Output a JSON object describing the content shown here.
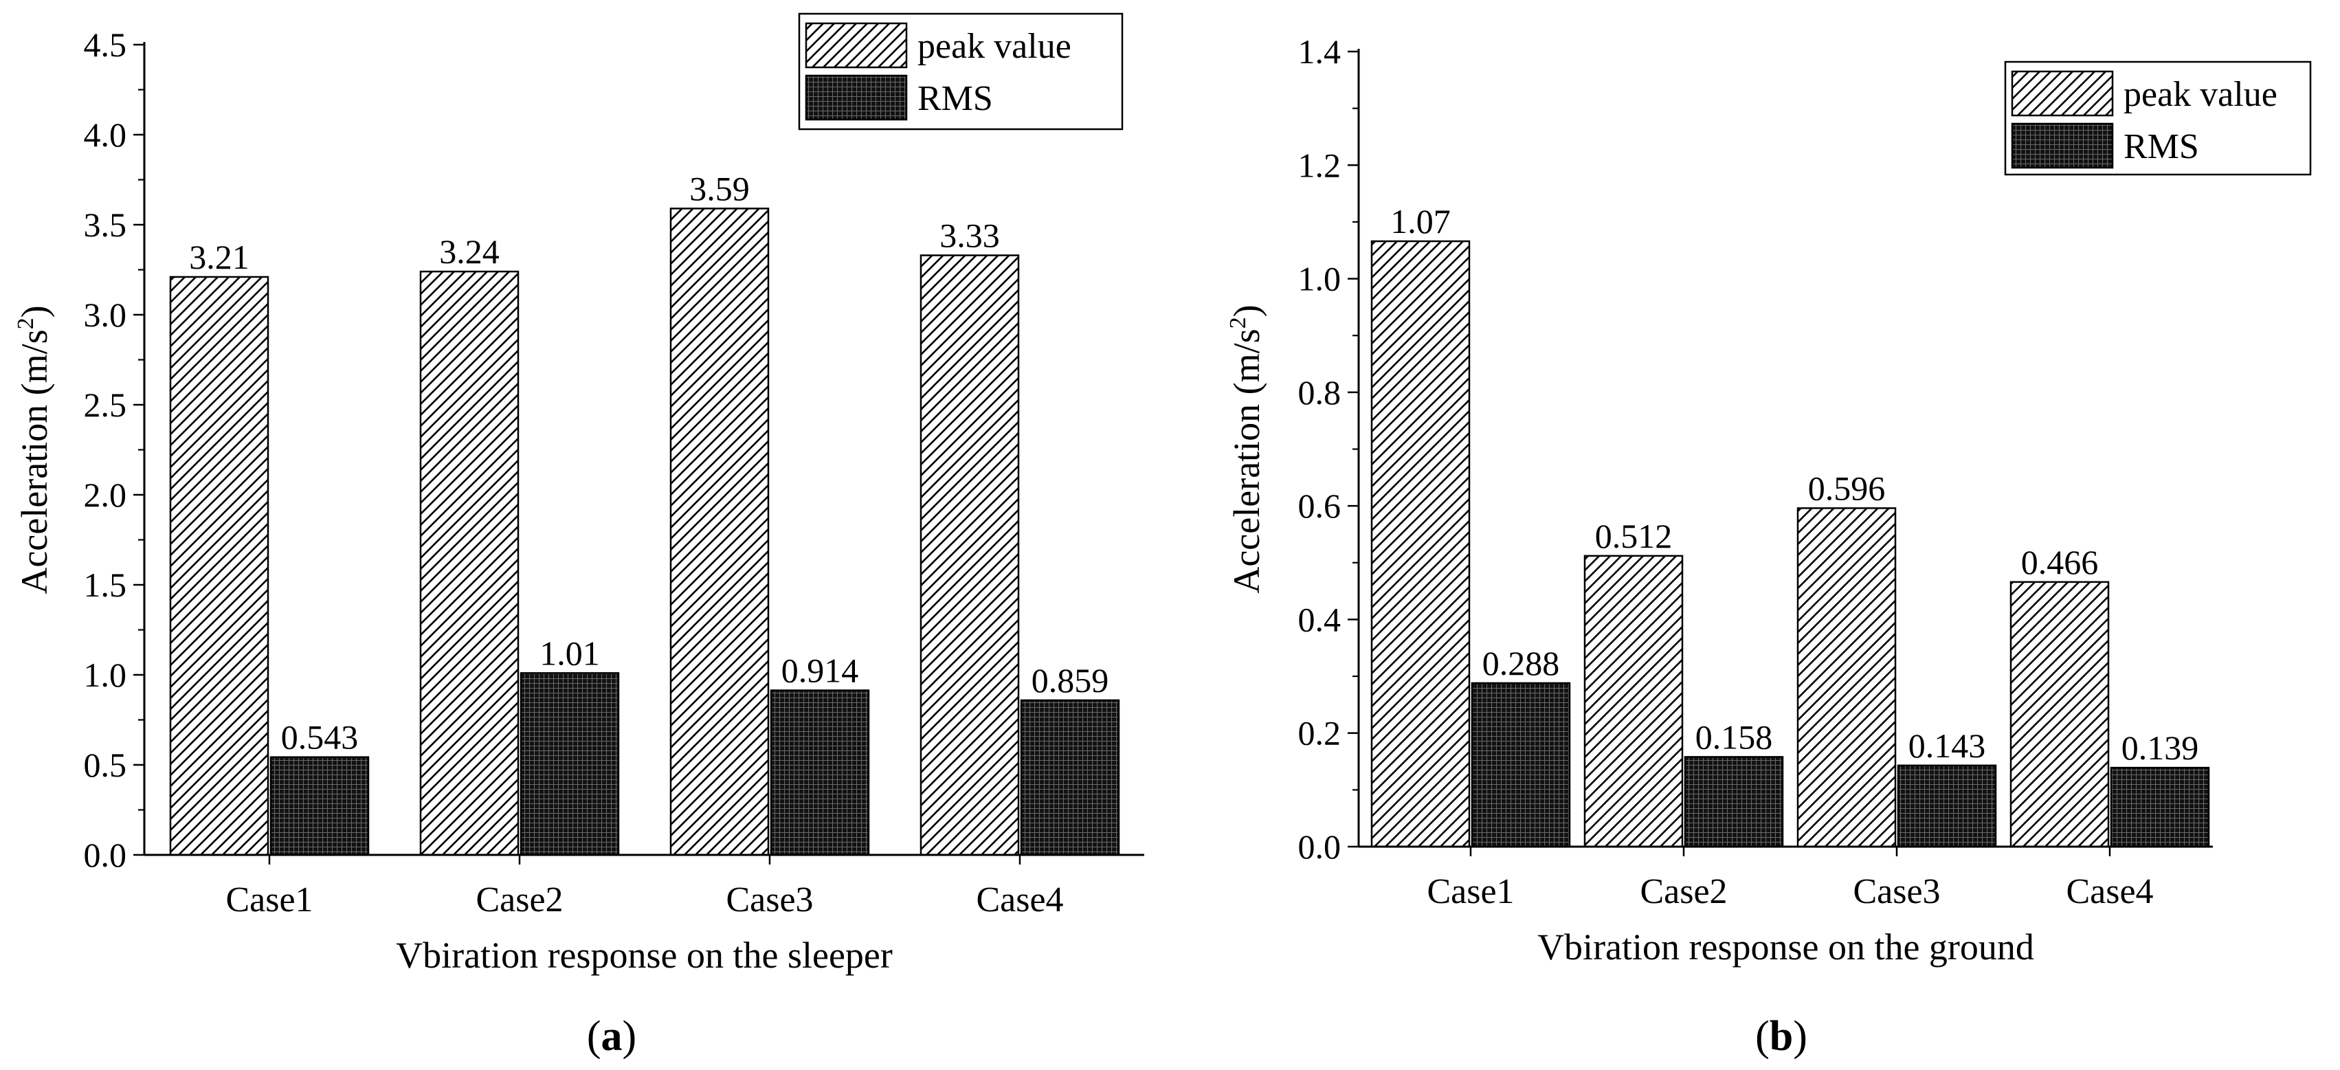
{
  "chart_data": [
    {
      "type": "bar",
      "panel_label": "a",
      "title": "",
      "xlabel": "Vbiration response on the sleeper",
      "ylabel_main": "Acceleration (m/s",
      "ylabel_sup": "2",
      "ylabel_end": ")",
      "categories": [
        "Case1",
        "Case2",
        "Case3",
        "Case4"
      ],
      "series": [
        {
          "name": "peak value",
          "pattern": "hatch",
          "values": [
            3.21,
            3.24,
            3.59,
            3.33
          ],
          "labels": [
            "3.21",
            "3.24",
            "3.59",
            "3.33"
          ]
        },
        {
          "name": "RMS",
          "pattern": "grid",
          "values": [
            0.543,
            1.01,
            0.914,
            0.859
          ],
          "labels": [
            "0.543",
            "1.01",
            "0.914",
            "0.859"
          ]
        }
      ],
      "ylim": [
        0,
        4.5
      ],
      "yticks": [
        "0.0",
        "0.5",
        "1.0",
        "1.5",
        "2.0",
        "2.5",
        "3.0",
        "3.5",
        "4.0",
        "4.5"
      ],
      "ytick_values": [
        0,
        0.5,
        1.0,
        1.5,
        2.0,
        2.5,
        3.0,
        3.5,
        4.0,
        4.5
      ],
      "legend_position": "top-right",
      "grid": false
    },
    {
      "type": "bar",
      "panel_label": "b",
      "title": "",
      "xlabel": "Vbiration response on the ground",
      "ylabel_main": "Acceleration (m/s",
      "ylabel_sup": "2",
      "ylabel_end": ")",
      "categories": [
        "Case1",
        "Case2",
        "Case3",
        "Case4"
      ],
      "series": [
        {
          "name": "peak value",
          "pattern": "hatch",
          "values": [
            1.066,
            0.512,
            0.596,
            0.466
          ],
          "labels": [
            "1.07",
            "0.512",
            "0.596",
            "0.466"
          ]
        },
        {
          "name": "RMS",
          "pattern": "grid",
          "values": [
            0.288,
            0.158,
            0.143,
            0.139
          ],
          "labels": [
            "0.288",
            "0.158",
            "0.143",
            "0.139"
          ]
        }
      ],
      "ylim": [
        0,
        1.4
      ],
      "yticks": [
        "0.0",
        "0.2",
        "0.4",
        "0.6",
        "0.8",
        "1.0",
        "1.2",
        "1.4"
      ],
      "ytick_values": [
        0,
        0.2,
        0.4,
        0.6,
        0.8,
        1.0,
        1.2,
        1.4
      ],
      "legend_position": "top-right",
      "grid": false
    }
  ]
}
